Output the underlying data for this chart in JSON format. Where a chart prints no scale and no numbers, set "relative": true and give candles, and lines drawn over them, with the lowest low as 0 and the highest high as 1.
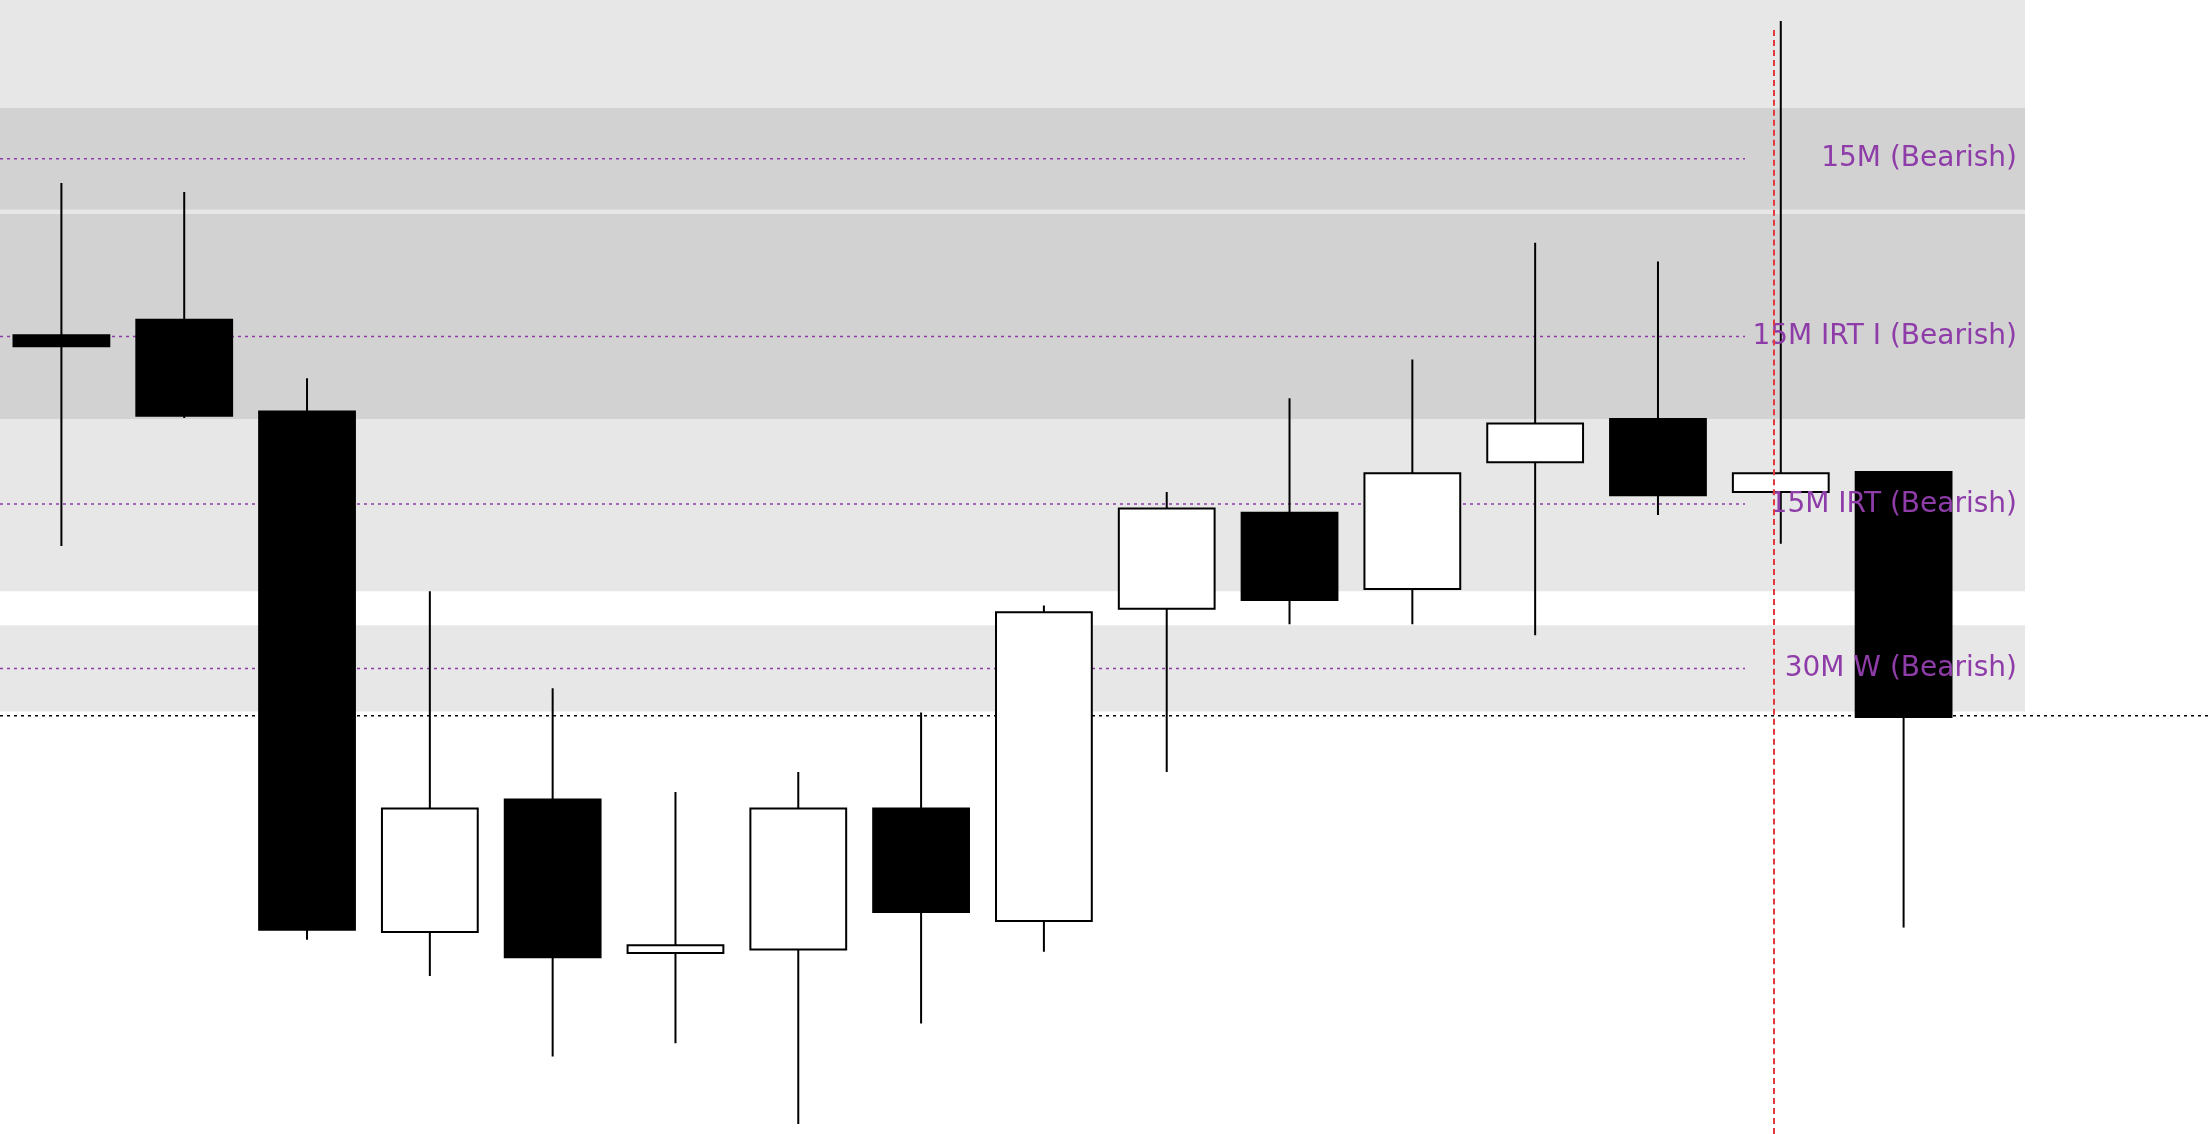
{
  "chart_data": {
    "type": "candlestick",
    "relative": true,
    "categories": [
      null,
      null,
      null,
      null,
      null,
      null,
      null,
      null,
      null,
      null,
      null,
      null,
      null,
      null,
      null,
      null
    ],
    "ohlc": [
      [
        0.715,
        0.853,
        0.524,
        0.705
      ],
      [
        0.729,
        0.845,
        0.64,
        0.642
      ],
      [
        0.646,
        0.676,
        0.167,
        0.176
      ],
      [
        0.174,
        0.483,
        0.134,
        0.286
      ],
      [
        0.294,
        0.395,
        0.061,
        0.151
      ],
      [
        0.155,
        0.301,
        0.073,
        0.162
      ],
      [
        0.158,
        0.319,
        0,
        0.286
      ],
      [
        0.286,
        0.373,
        0.091,
        0.192
      ],
      [
        0.184,
        0.47,
        0.156,
        0.464
      ],
      [
        0.467,
        0.573,
        0.319,
        0.558
      ],
      [
        0.554,
        0.658,
        0.453,
        0.475
      ],
      [
        0.485,
        0.693,
        0.453,
        0.59
      ],
      [
        0.6,
        0.799,
        0.443,
        0.635
      ],
      [
        0.639,
        0.782,
        0.552,
        0.57
      ],
      [
        0.573,
        1,
        0.526,
        0.59
      ],
      [
        0.591,
        0.591,
        0.178,
        0.369
      ]
    ],
    "bands": [
      {
        "axis": "y",
        "from": 0.575,
        "to": 1.019,
        "color": "#e7e7e7"
      },
      {
        "axis": "y",
        "from": 0.829,
        "to": 0.921,
        "label": "15M (Bearish)",
        "color": "#d2d2d2"
      },
      {
        "axis": "y",
        "from": 0.603,
        "to": 0.825,
        "label": "15M IRT I (Bearish)",
        "color": "#d2d2d2"
      },
      {
        "axis": "y",
        "from": 0.483,
        "to": 0.639,
        "label": "15M IRT (Bearish)",
        "color": "#e7e7e7"
      },
      {
        "axis": "y",
        "from": 0.374,
        "to": 0.452,
        "label": "30M W (Bearish)",
        "color": "#e7e7e7"
      }
    ],
    "ref_lines": [
      {
        "axis": "y",
        "value": 0.37,
        "color": "#000000",
        "line_style": "dotted"
      },
      {
        "axis": "y",
        "value": 0.875,
        "color": "#8e3ca8",
        "line_style": "dotted"
      },
      {
        "axis": "y",
        "value": 0.714,
        "color": "#8e3ca8",
        "line_style": "dotted"
      },
      {
        "axis": "y",
        "value": 0.562,
        "color": "#8e3ca8",
        "line_style": "dotted"
      },
      {
        "axis": "y",
        "value": 0.413,
        "color": "#8e3ca8",
        "line_style": "dotted"
      }
    ],
    "legend": false
  }
}
